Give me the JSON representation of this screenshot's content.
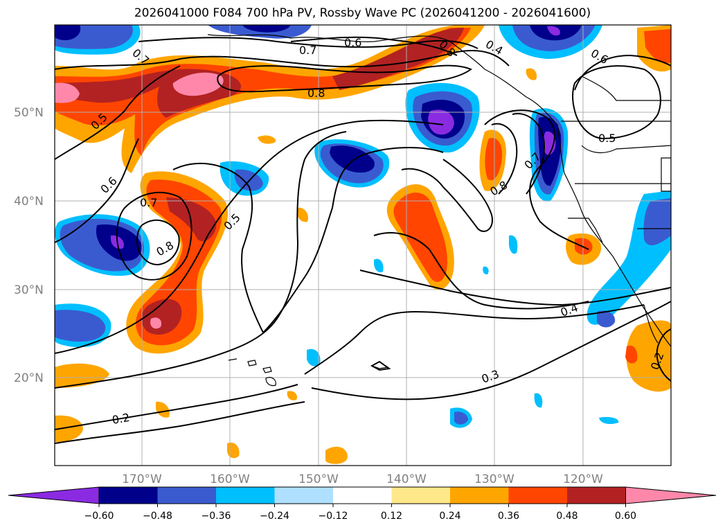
{
  "title": "2026041000 F084 700 hPa PV, Rossby Wave PC (2026041200 - 2026041600)",
  "lat_labels": [
    "50°N",
    "40°N",
    "30°N",
    "20°N"
  ],
  "lon_labels": [
    "170°W",
    "160°W",
    "150°W",
    "140°W",
    "130°W",
    "120°W"
  ],
  "contour_labels": [
    "0.7",
    "0.6",
    "0.4",
    "0.6",
    "0.7",
    "0.8",
    "0.5",
    "0.6",
    "0.7",
    "0.8",
    "0.5",
    "0.8",
    "0.7",
    "0.8",
    "0.5",
    "0.4",
    "0.3",
    "0.2",
    "0.2"
  ],
  "colorbar": {
    "ticks": [
      "−0.60",
      "−0.48",
      "−0.36",
      "−0.24",
      "−0.12",
      "0.12",
      "0.24",
      "0.36",
      "0.48",
      "0.60"
    ],
    "colors": [
      "#8a2be2",
      "#00008b",
      "#3a5bd0",
      "#00bfff",
      "#b0e0ff",
      "#ffffff",
      "#ffe88a",
      "#ffa500",
      "#ff4500",
      "#b22222",
      "#ff88aa"
    ]
  },
  "colors": {
    "neg_extreme": "#8a2be2",
    "neg_strong": "#00008b",
    "neg_mid": "#3a5bd0",
    "neg_light": "#00bfff",
    "neg_faint": "#b0e0ff",
    "pos_faint": "#ffe88a",
    "pos_light": "#ffa500",
    "pos_mid": "#ff4500",
    "pos_strong": "#b22222",
    "pos_extreme": "#ff88aa",
    "grid": "#b0b0b0",
    "axis_label": "#808080"
  }
}
